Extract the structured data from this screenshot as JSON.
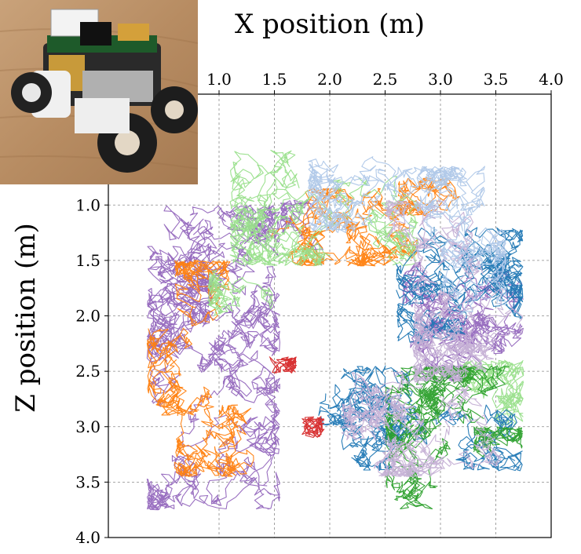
{
  "chart_data": {
    "type": "line",
    "xlabel": "X position (m)",
    "ylabel": "Z position (m)",
    "xlim": [
      0.0,
      4.0
    ],
    "ylim": [
      4.0,
      0.0
    ],
    "x_axis_position": "top",
    "y_inverted": true,
    "grid": true,
    "xticks": [
      1.0,
      1.5,
      2.0,
      2.5,
      3.0,
      3.5,
      4.0
    ],
    "xtick_labels": [
      "1.0",
      "1.5",
      "2.0",
      "2.5",
      "3.0",
      "3.5",
      "4.0"
    ],
    "yticks": [
      1.0,
      1.5,
      2.0,
      2.5,
      3.0,
      3.5,
      4.0
    ],
    "ytick_labels": [
      "1.0",
      "1.5",
      "2.0",
      "2.5",
      "3.0",
      "3.5",
      "4.0"
    ],
    "inset": "photo of a small wheeled robot (top-left)",
    "series": [
      {
        "color": "#9467bd",
        "regions": [
          [
            0.35,
            1.0,
            1.55,
            3.75
          ],
          [
            0.35,
            1.0,
            0.95,
            2.3
          ],
          [
            1.55,
            0.95,
            1.95,
            1.55
          ],
          [
            2.65,
            1.25,
            3.75,
            2.6
          ]
        ]
      },
      {
        "color": "#ff7f0e",
        "regions": [
          [
            0.35,
            2.05,
            0.95,
            2.9
          ],
          [
            0.6,
            1.5,
            1.1,
            2.4
          ],
          [
            1.2,
            0.85,
            2.8,
            1.55
          ],
          [
            2.6,
            0.75,
            3.6,
            1.1
          ],
          [
            0.6,
            2.8,
            1.55,
            3.45
          ]
        ]
      },
      {
        "color": "#98df8a",
        "regions": [
          [
            1.1,
            0.5,
            2.8,
            1.55
          ],
          [
            0.9,
            1.5,
            1.5,
            2.0
          ],
          [
            3.2,
            2.4,
            3.75,
            3.6
          ]
        ]
      },
      {
        "color": "#1f77b4",
        "regions": [
          [
            2.6,
            1.2,
            3.75,
            2.6
          ],
          [
            2.1,
            2.45,
            3.75,
            3.4
          ],
          [
            1.9,
            2.45,
            2.2,
            3.0
          ]
        ]
      },
      {
        "color": "#2ca02c",
        "regions": [
          [
            2.5,
            2.45,
            3.75,
            3.75
          ],
          [
            3.3,
            3.0,
            3.75,
            3.75
          ]
        ]
      },
      {
        "color": "#c5b0d5",
        "regions": [
          [
            2.1,
            2.5,
            3.75,
            3.45
          ],
          [
            2.75,
            1.1,
            3.75,
            2.6
          ],
          [
            2.5,
            0.95,
            3.3,
            1.4
          ]
        ]
      },
      {
        "color": "#aec7e8",
        "regions": [
          [
            1.8,
            0.5,
            2.8,
            1.25
          ],
          [
            2.4,
            0.65,
            3.4,
            1.35
          ],
          [
            3.0,
            1.2,
            3.6,
            2.1
          ]
        ]
      },
      {
        "color": "#d62728",
        "regions": [
          [
            1.45,
            2.37,
            1.7,
            2.52
          ],
          [
            1.75,
            2.9,
            1.95,
            3.1
          ]
        ]
      }
    ]
  }
}
